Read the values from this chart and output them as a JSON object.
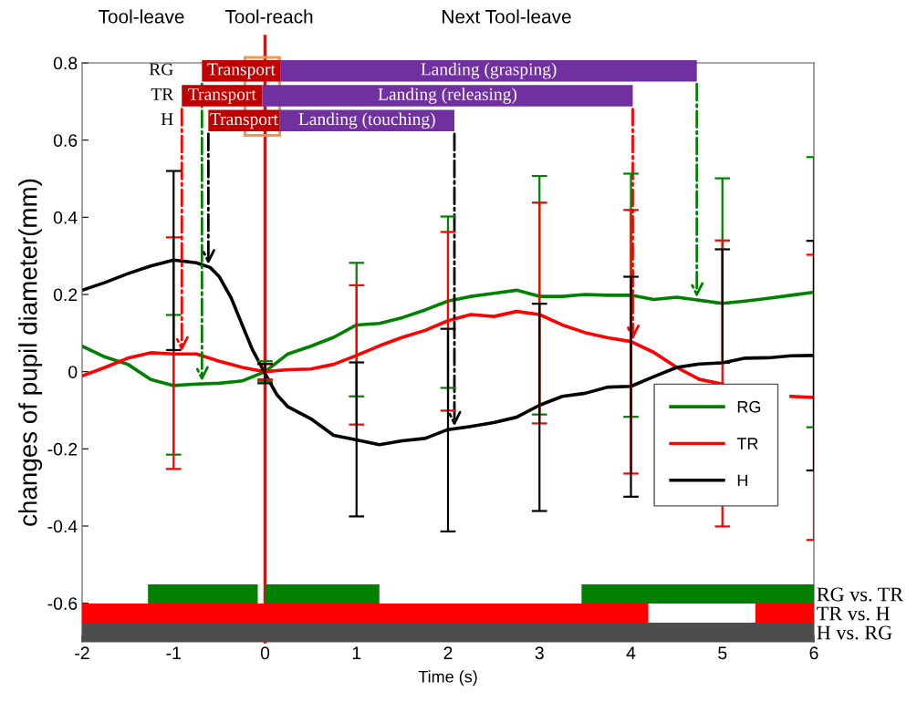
{
  "chart_data": [
    {
      "type": "line",
      "xlabel": "Time (s)",
      "ylabel": "changes of pupil diameter(mm)",
      "xlim": [
        -2,
        6
      ],
      "ylim": [
        -0.7,
        0.8
      ],
      "xticks": [
        -2,
        -1,
        0,
        1,
        2,
        3,
        4,
        5,
        6
      ],
      "yticks": [
        -0.6,
        -0.4,
        -0.2,
        0,
        0.2,
        0.4,
        0.6,
        0.8
      ],
      "legend": "right",
      "grid": false,
      "marker": "none",
      "line_style": "solid",
      "ref_lines": [
        {
          "axis": "x",
          "value": 0,
          "color": "#ff0000",
          "line_style": "solid"
        }
      ],
      "annotations": [
        "Tool-leave",
        "Tool-reach",
        "Next Tool-leave"
      ],
      "series": [
        {
          "name": "RG",
          "color": "#008000",
          "x": [
            -2,
            -1.75,
            -1.5,
            -1.25,
            -1,
            -0.75,
            -0.5,
            -0.25,
            0,
            0.25,
            0.5,
            0.75,
            1,
            1.25,
            1.5,
            1.75,
            2,
            2.25,
            2.5,
            2.75,
            3,
            3.25,
            3.5,
            3.75,
            4,
            4.25,
            4.5,
            4.75,
            5,
            5.25,
            5.5,
            5.75,
            6
          ],
          "values": [
            0.066,
            0.038,
            0.019,
            -0.02,
            -0.036,
            -0.032,
            -0.03,
            -0.024,
            0.0,
            0.046,
            0.066,
            0.089,
            0.121,
            0.125,
            0.14,
            0.16,
            0.183,
            0.195,
            0.203,
            0.211,
            0.195,
            0.195,
            0.2,
            0.198,
            0.198,
            0.187,
            0.193,
            0.185,
            0.177,
            0.183,
            0.19,
            0.198,
            0.206
          ],
          "errors": [
            null,
            null,
            null,
            null,
            [
              -0.215,
              0.147
            ],
            null,
            null,
            null,
            [
              -0.024,
              0.027
            ],
            null,
            null,
            null,
            [
              -0.064,
              0.282
            ],
            null,
            null,
            null,
            [
              -0.042,
              0.402
            ],
            null,
            null,
            null,
            [
              -0.111,
              0.507
            ],
            null,
            null,
            null,
            [
              -0.117,
              0.513
            ],
            null,
            null,
            null,
            [
              0.177,
              0.501
            ],
            null,
            null,
            null,
            [
              -0.144,
              0.556
            ]
          ]
        },
        {
          "name": "TR",
          "color": "#ff0000",
          "x": [
            -2,
            -1.75,
            -1.5,
            -1.25,
            -1,
            -0.75,
            -0.5,
            -0.25,
            0,
            0.25,
            0.5,
            0.75,
            1,
            1.25,
            1.5,
            1.75,
            2,
            2.25,
            2.5,
            2.75,
            3,
            3.25,
            3.5,
            3.75,
            4,
            4.25,
            4.5,
            4.75,
            5,
            5.25,
            5.5,
            5.75,
            6
          ],
          "values": [
            -0.011,
            0.011,
            0.035,
            0.049,
            0.046,
            0.046,
            0.027,
            0.011,
            0.0,
            0.005,
            0.007,
            0.019,
            0.042,
            0.067,
            0.089,
            0.107,
            0.132,
            0.148,
            0.143,
            0.156,
            0.148,
            0.121,
            0.101,
            0.088,
            0.078,
            0.05,
            0.011,
            -0.02,
            -0.032,
            null,
            null,
            -0.064,
            -0.067
          ],
          "errors": [
            null,
            null,
            null,
            null,
            [
              -0.252,
              0.348
            ],
            null,
            null,
            null,
            [
              -0.02,
              0.02
            ],
            null,
            null,
            null,
            [
              -0.137,
              0.224
            ],
            null,
            null,
            null,
            [
              -0.101,
              0.362
            ],
            null,
            null,
            null,
            [
              -0.134,
              0.438
            ],
            null,
            null,
            null,
            [
              -0.264,
              0.419
            ],
            null,
            null,
            null,
            [
              -0.401,
              0.34
            ],
            null,
            null,
            null,
            [
              -0.436,
              0.303
            ]
          ]
        },
        {
          "name": "H",
          "color": "#000000",
          "x": [
            -2,
            -1.75,
            -1.5,
            -1.25,
            -1,
            -0.75,
            -0.6,
            -0.5,
            -0.37,
            -0.25,
            -0.14,
            0,
            0.13,
            0.25,
            0.5,
            0.75,
            1,
            1.25,
            1.5,
            1.75,
            2,
            2.25,
            2.5,
            2.75,
            3,
            3.25,
            3.5,
            3.75,
            4,
            4.25,
            4.5,
            4.75,
            5,
            5.25,
            5.5,
            5.75,
            6
          ],
          "values": [
            0.211,
            0.231,
            0.254,
            0.274,
            0.289,
            0.282,
            0.27,
            0.246,
            0.191,
            0.121,
            0.058,
            -0.005,
            -0.06,
            -0.091,
            -0.122,
            -0.165,
            -0.177,
            -0.189,
            -0.179,
            -0.173,
            -0.15,
            -0.142,
            -0.132,
            -0.118,
            -0.087,
            -0.064,
            -0.056,
            -0.04,
            -0.038,
            -0.013,
            0.011,
            0.02,
            0.023,
            0.035,
            0.036,
            0.041,
            0.042
          ],
          "errors": [
            null,
            null,
            null,
            null,
            [
              0.056,
              0.52
            ],
            null,
            null,
            null,
            null,
            null,
            null,
            [
              -0.03,
              0.02
            ],
            null,
            null,
            null,
            null,
            [
              -0.375,
              0.024
            ],
            null,
            null,
            null,
            [
              -0.414,
              0.111
            ],
            null,
            null,
            null,
            [
              -0.361,
              0.176
            ],
            null,
            null,
            null,
            [
              -0.324,
              0.246
            ],
            null,
            null,
            null,
            [
              0.023,
              0.317
            ],
            null,
            null,
            null,
            [
              -0.256,
              0.339
            ]
          ]
        }
      ]
    },
    {
      "type": "bar",
      "orientation": "horizontal",
      "categories": [
        "RG",
        "TR",
        "H"
      ],
      "xlim": [
        -2,
        6
      ],
      "tick_labels": "y",
      "series": [
        {
          "color": "#c00000",
          "base": [
            -0.69,
            -0.91,
            -0.62
          ],
          "values": [
            0.86,
            0.88,
            0.78
          ],
          "value_labels": [
            "Transport",
            "Transport",
            "Transport"
          ]
        },
        {
          "color": "#7030a0",
          "base": [
            0.17,
            -0.03,
            0.16
          ],
          "values": [
            4.55,
            4.05,
            1.91
          ],
          "value_labels": [
            "Landing (grasping)",
            "Landing (releasing)",
            "Landing (touching)"
          ]
        }
      ]
    },
    {
      "type": "bar",
      "orientation": "horizontal",
      "categories": [
        "RG vs. TR",
        "TR vs. H",
        "H vs. RG"
      ],
      "xlim": [
        -2,
        6
      ],
      "tick_labels": "y",
      "series": [
        {
          "color": "#008000",
          "base": [
            -1.28,
            null,
            null
          ],
          "values": [
            1.2,
            null,
            null
          ]
        },
        {
          "color": "#008000",
          "base": [
            0.0,
            null,
            null
          ],
          "values": [
            1.25,
            null,
            null
          ]
        },
        {
          "color": "#008000",
          "base": [
            3.46,
            null,
            null
          ],
          "values": [
            2.54,
            null,
            null
          ]
        },
        {
          "color": "#ff0000",
          "base": [
            null,
            -2,
            null
          ],
          "values": [
            null,
            6.19,
            null
          ]
        },
        {
          "color": "#ff0000",
          "base": [
            null,
            5.36,
            null
          ],
          "values": [
            null,
            0.64,
            null
          ]
        },
        {
          "color": "#4d4d4d",
          "base": [
            null,
            null,
            -2
          ],
          "values": [
            null,
            null,
            8
          ]
        }
      ]
    }
  ]
}
